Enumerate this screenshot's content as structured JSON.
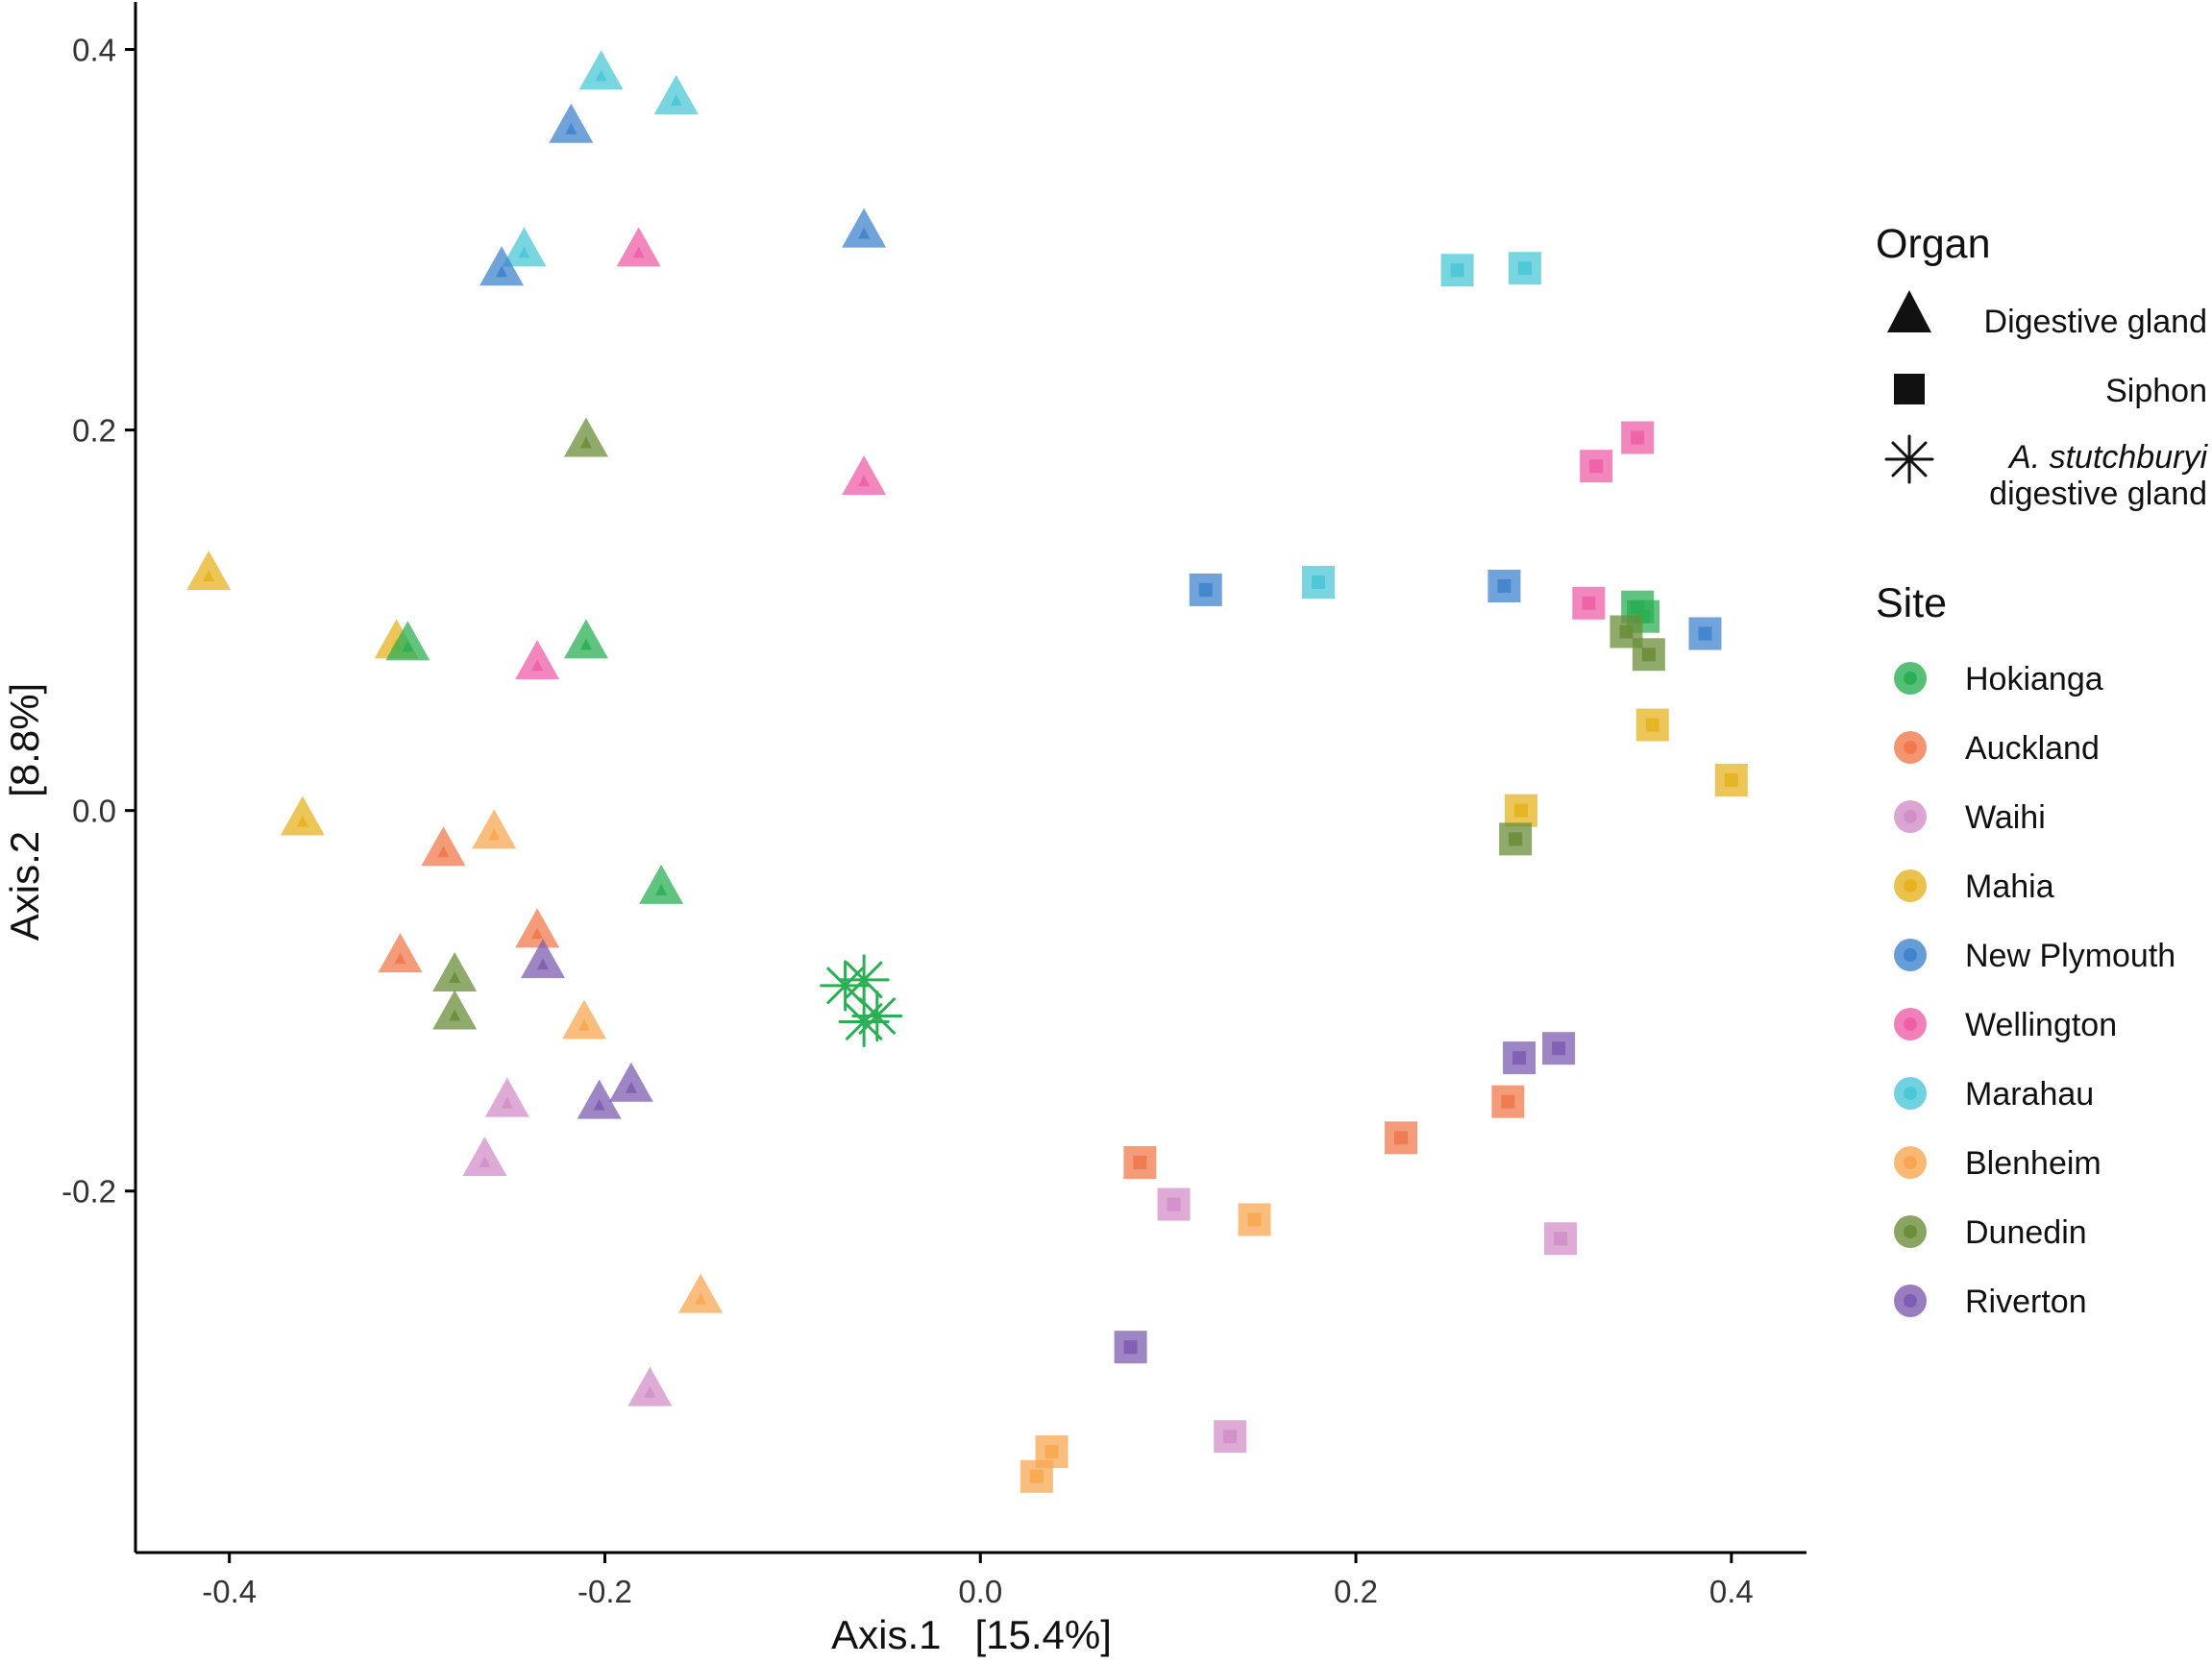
{
  "chart_data": {
    "type": "scatter",
    "title": "",
    "xlabel": "Axis.1   [15.4%]",
    "ylabel": "Axis.2   [8.8%]",
    "xlim": [
      -0.45,
      0.44
    ],
    "ylim": [
      -0.39,
      0.425
    ],
    "x_ticks": [
      -0.4,
      -0.2,
      0.0,
      0.2,
      0.4
    ],
    "x_tick_labels": [
      "-0.4",
      "-0.2",
      "0.0",
      "0.2",
      "0.4"
    ],
    "y_ticks": [
      -0.2,
      0.0,
      0.2,
      0.4
    ],
    "y_tick_labels": [
      "-0.2",
      "0.0",
      "0.2",
      "0.4"
    ],
    "grid": false,
    "legend_position": "right",
    "legend": {
      "organ_title": "Organ",
      "organ": [
        {
          "key": "dg",
          "shape": "triangle",
          "label": "Digestive gland"
        },
        {
          "key": "si",
          "shape": "square",
          "label": "Siphon"
        },
        {
          "key": "as",
          "shape": "asterisk",
          "label_italic": "A. stutchburyi",
          "label_line2": "digestive gland"
        }
      ],
      "site_title": "Site",
      "sites": [
        "Hokianga",
        "Auckland",
        "Waihi",
        "Mahia",
        "New Plymouth",
        "Wellington",
        "Marahau",
        "Blenheim",
        "Dunedin",
        "Riverton"
      ]
    },
    "site_colors": {
      "Hokianga": "#2BAF55",
      "Auckland": "#F07A4E",
      "Waihi": "#D18FC8",
      "Mahia": "#E6B320",
      "New Plymouth": "#3F84CC",
      "Wellington": "#EE5FA8",
      "Marahau": "#4CC7D6",
      "Blenheim": "#F7A751",
      "Dunedin": "#6B8E3A",
      "Riverton": "#7E5DB2"
    },
    "series": [
      {
        "name": "Digestive gland",
        "shape": "triangle",
        "points": [
          {
            "x": -0.202,
            "y": 0.387,
            "site": "Marahau"
          },
          {
            "x": -0.162,
            "y": 0.374,
            "site": "Marahau"
          },
          {
            "x": -0.218,
            "y": 0.359,
            "site": "New Plymouth"
          },
          {
            "x": -0.062,
            "y": 0.304,
            "site": "New Plymouth"
          },
          {
            "x": -0.243,
            "y": 0.294,
            "site": "Marahau"
          },
          {
            "x": -0.182,
            "y": 0.294,
            "site": "Wellington"
          },
          {
            "x": -0.255,
            "y": 0.284,
            "site": "New Plymouth"
          },
          {
            "x": -0.21,
            "y": 0.194,
            "site": "Dunedin"
          },
          {
            "x": -0.062,
            "y": 0.174,
            "site": "Wellington"
          },
          {
            "x": -0.411,
            "y": 0.124,
            "site": "Mahia"
          },
          {
            "x": -0.311,
            "y": 0.088,
            "site": "Mahia"
          },
          {
            "x": -0.305,
            "y": 0.087,
            "site": "Hokianga"
          },
          {
            "x": -0.21,
            "y": 0.088,
            "site": "Hokianga"
          },
          {
            "x": -0.236,
            "y": 0.077,
            "site": "Wellington"
          },
          {
            "x": -0.361,
            "y": -0.005,
            "site": "Mahia"
          },
          {
            "x": -0.259,
            "y": -0.012,
            "site": "Blenheim"
          },
          {
            "x": -0.286,
            "y": -0.021,
            "site": "Auckland"
          },
          {
            "x": -0.17,
            "y": -0.041,
            "site": "Hokianga"
          },
          {
            "x": -0.236,
            "y": -0.064,
            "site": "Auckland"
          },
          {
            "x": -0.309,
            "y": -0.077,
            "site": "Auckland"
          },
          {
            "x": -0.233,
            "y": -0.08,
            "site": "Riverton"
          },
          {
            "x": -0.28,
            "y": -0.087,
            "site": "Dunedin"
          },
          {
            "x": -0.28,
            "y": -0.107,
            "site": "Dunedin"
          },
          {
            "x": -0.211,
            "y": -0.112,
            "site": "Blenheim"
          },
          {
            "x": -0.186,
            "y": -0.145,
            "site": "Riverton"
          },
          {
            "x": -0.252,
            "y": -0.153,
            "site": "Waihi"
          },
          {
            "x": -0.203,
            "y": -0.154,
            "site": "Riverton"
          },
          {
            "x": -0.264,
            "y": -0.184,
            "site": "Waihi"
          },
          {
            "x": -0.149,
            "y": -0.256,
            "site": "Blenheim"
          },
          {
            "x": -0.176,
            "y": -0.305,
            "site": "Waihi"
          }
        ]
      },
      {
        "name": "Siphon",
        "shape": "square",
        "points": [
          {
            "x": 0.254,
            "y": 0.284,
            "site": "Marahau"
          },
          {
            "x": 0.29,
            "y": 0.285,
            "site": "Marahau"
          },
          {
            "x": 0.35,
            "y": 0.196,
            "site": "Wellington"
          },
          {
            "x": 0.328,
            "y": 0.181,
            "site": "Wellington"
          },
          {
            "x": 0.12,
            "y": 0.116,
            "site": "New Plymouth"
          },
          {
            "x": 0.18,
            "y": 0.12,
            "site": "Marahau"
          },
          {
            "x": 0.279,
            "y": 0.118,
            "site": "New Plymouth"
          },
          {
            "x": 0.324,
            "y": 0.109,
            "site": "Wellington"
          },
          {
            "x": 0.35,
            "y": 0.107,
            "site": "Hokianga"
          },
          {
            "x": 0.353,
            "y": 0.102,
            "site": "Hokianga"
          },
          {
            "x": 0.344,
            "y": 0.094,
            "site": "Dunedin"
          },
          {
            "x": 0.386,
            "y": 0.093,
            "site": "New Plymouth"
          },
          {
            "x": 0.356,
            "y": 0.082,
            "site": "Dunedin"
          },
          {
            "x": 0.358,
            "y": 0.045,
            "site": "Mahia"
          },
          {
            "x": 0.4,
            "y": 0.016,
            "site": "Mahia"
          },
          {
            "x": 0.288,
            "y": 0.0,
            "site": "Mahia"
          },
          {
            "x": 0.285,
            "y": -0.015,
            "site": "Dunedin"
          },
          {
            "x": 0.308,
            "y": -0.125,
            "site": "Riverton"
          },
          {
            "x": 0.287,
            "y": -0.13,
            "site": "Riverton"
          },
          {
            "x": 0.281,
            "y": -0.153,
            "site": "Auckland"
          },
          {
            "x": 0.224,
            "y": -0.172,
            "site": "Auckland"
          },
          {
            "x": 0.085,
            "y": -0.185,
            "site": "Auckland"
          },
          {
            "x": 0.103,
            "y": -0.207,
            "site": "Waihi"
          },
          {
            "x": 0.146,
            "y": -0.215,
            "site": "Blenheim"
          },
          {
            "x": 0.309,
            "y": -0.225,
            "site": "Waihi"
          },
          {
            "x": 0.08,
            "y": -0.282,
            "site": "Riverton"
          },
          {
            "x": 0.133,
            "y": -0.329,
            "site": "Waihi"
          },
          {
            "x": 0.038,
            "y": -0.337,
            "site": "Blenheim"
          },
          {
            "x": 0.03,
            "y": -0.35,
            "site": "Blenheim"
          }
        ]
      },
      {
        "name": "A. stutchburyi digestive gland",
        "shape": "asterisk",
        "points": [
          {
            "x": -0.072,
            "y": -0.092,
            "site": "Hokianga"
          },
          {
            "x": -0.062,
            "y": -0.089,
            "site": "Hokianga"
          },
          {
            "x": -0.062,
            "y": -0.111,
            "site": "Hokianga"
          },
          {
            "x": -0.055,
            "y": -0.108,
            "site": "Hokianga"
          }
        ]
      }
    ]
  }
}
